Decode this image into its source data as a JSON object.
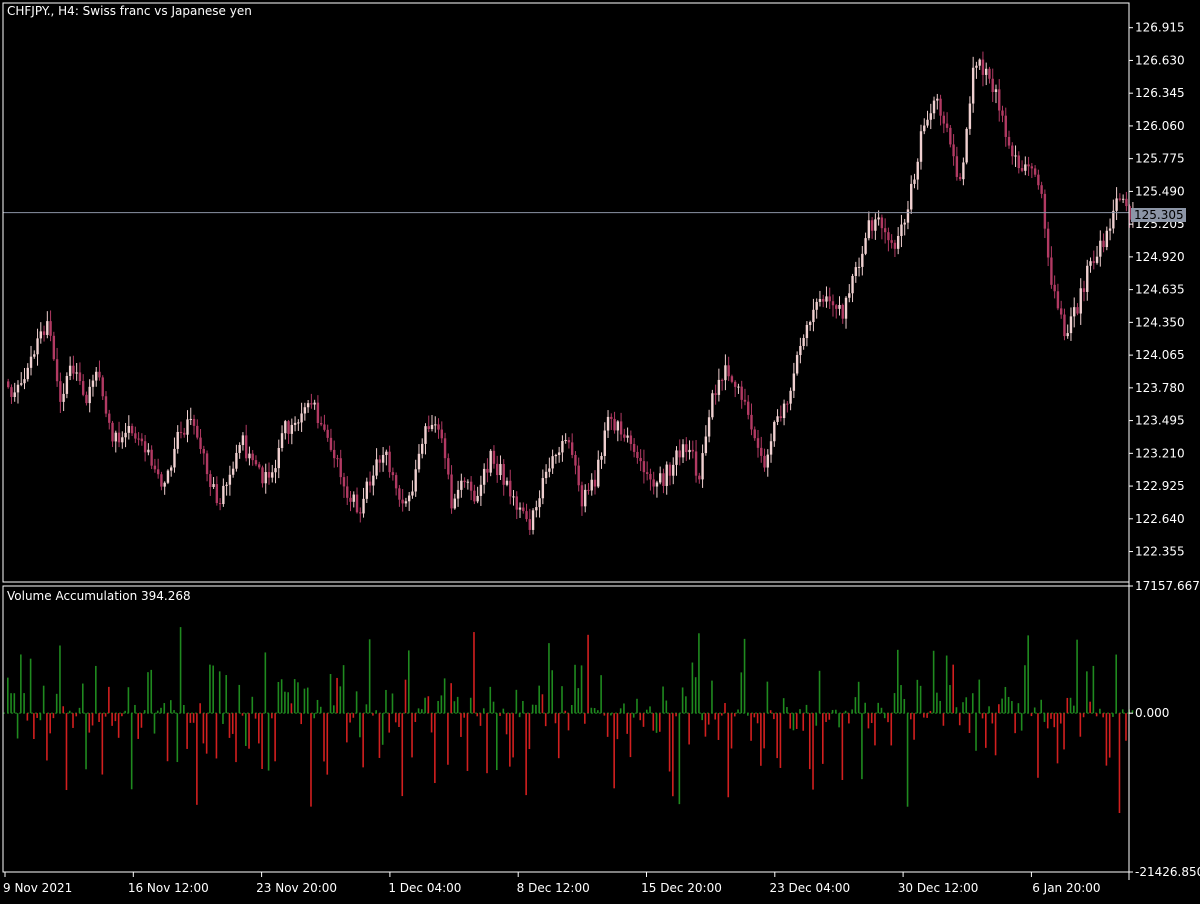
{
  "header": {
    "symbol": "CHFJPY.",
    "timeframe": "H4",
    "description": "Swiss franc vs Japanese yen",
    "title_text": "CHFJPY., H4:  Swiss franc vs Japanese yen"
  },
  "indicator": {
    "name": "Volume Accumulation",
    "value": "394.268",
    "title_text": "Volume Accumulation 394.268"
  },
  "current_price_label": "125.305",
  "colors": {
    "background": "#000000",
    "frame": "#ffffff",
    "bull_candle": "#f0d0d0",
    "bear_candle": "#b23a63",
    "positive_bar": "#1f8a1f",
    "negative_bar": "#d21f1f",
    "price_line": "#8c95a6",
    "zero_line": "#1f8a1f"
  },
  "chart_data": [
    {
      "type": "candlestick",
      "title": "CHFJPY., H4:  Swiss franc vs Japanese yen",
      "ylim": [
        122.09,
        127.13
      ],
      "y_tick_labels": [
        "126.915",
        "126.630",
        "126.345",
        "126.060",
        "125.775",
        "125.490",
        "125.205",
        "124.920",
        "124.635",
        "124.350",
        "124.065",
        "123.780",
        "123.495",
        "123.210",
        "122.925",
        "122.640",
        "122.355"
      ],
      "x_tick_labels": [
        "9 Nov 2021",
        "16 Nov 12:00",
        "23 Nov 20:00",
        "1 Dec 04:00",
        "8 Dec 12:00",
        "15 Dec 20:00",
        "23 Dec 04:00",
        "30 Dec 12:00",
        "6 Jan 20:00"
      ],
      "current_price": 125.305,
      "close_path": [
        [
          0,
          123.71
        ],
        [
          4,
          123.75
        ],
        [
          8,
          124.06
        ],
        [
          12,
          124.35
        ],
        [
          16,
          123.66
        ],
        [
          20,
          123.98
        ],
        [
          24,
          123.72
        ],
        [
          28,
          123.89
        ],
        [
          32,
          123.35
        ],
        [
          36,
          123.4
        ],
        [
          40,
          123.32
        ],
        [
          44,
          123.16
        ],
        [
          48,
          122.92
        ],
        [
          52,
          123.38
        ],
        [
          56,
          123.5
        ],
        [
          60,
          123.2
        ],
        [
          64,
          122.78
        ],
        [
          68,
          123.05
        ],
        [
          72,
          123.29
        ],
        [
          76,
          123.11
        ],
        [
          80,
          122.92
        ],
        [
          84,
          123.4
        ],
        [
          88,
          123.49
        ],
        [
          92,
          123.72
        ],
        [
          96,
          123.44
        ],
        [
          100,
          123.2
        ],
        [
          104,
          122.85
        ],
        [
          108,
          122.73
        ],
        [
          112,
          123.06
        ],
        [
          116,
          123.25
        ],
        [
          120,
          122.75
        ],
        [
          124,
          122.93
        ],
        [
          128,
          123.37
        ],
        [
          132,
          123.43
        ],
        [
          136,
          122.79
        ],
        [
          140,
          122.96
        ],
        [
          144,
          122.84
        ],
        [
          148,
          123.19
        ],
        [
          152,
          122.99
        ],
        [
          156,
          122.77
        ],
        [
          160,
          122.58
        ],
        [
          164,
          122.93
        ],
        [
          168,
          123.2
        ],
        [
          172,
          123.31
        ],
        [
          176,
          122.82
        ],
        [
          180,
          122.95
        ],
        [
          184,
          123.49
        ],
        [
          188,
          123.43
        ],
        [
          192,
          123.16
        ],
        [
          196,
          123.02
        ],
        [
          200,
          122.96
        ],
        [
          204,
          123.13
        ],
        [
          208,
          123.29
        ],
        [
          212,
          123.01
        ],
        [
          216,
          123.71
        ],
        [
          220,
          123.93
        ],
        [
          224,
          123.72
        ],
        [
          228,
          123.49
        ],
        [
          232,
          123.03
        ],
        [
          236,
          123.53
        ],
        [
          240,
          123.77
        ],
        [
          244,
          124.27
        ],
        [
          248,
          124.52
        ],
        [
          252,
          124.6
        ],
        [
          256,
          124.42
        ],
        [
          260,
          124.76
        ],
        [
          264,
          125.23
        ],
        [
          268,
          125.19
        ],
        [
          272,
          125.02
        ],
        [
          276,
          125.35
        ],
        [
          280,
          125.98
        ],
        [
          284,
          126.28
        ],
        [
          288,
          126.1
        ],
        [
          292,
          125.52
        ],
        [
          296,
          126.6
        ],
        [
          300,
          126.55
        ],
        [
          304,
          126.26
        ],
        [
          308,
          125.79
        ],
        [
          312,
          125.71
        ],
        [
          316,
          125.62
        ],
        [
          320,
          124.73
        ],
        [
          324,
          124.21
        ],
        [
          328,
          124.48
        ],
        [
          332,
          124.87
        ],
        [
          336,
          125.05
        ],
        [
          340,
          125.42
        ],
        [
          344,
          125.3
        ]
      ]
    },
    {
      "type": "bar",
      "title": "Volume Accumulation 394.268",
      "ylim": [
        -21426.85,
        17157.667
      ],
      "y_tick_labels": [
        "17157.667",
        "0.000",
        "-21426.850"
      ],
      "current_value": 394.268
    }
  ]
}
